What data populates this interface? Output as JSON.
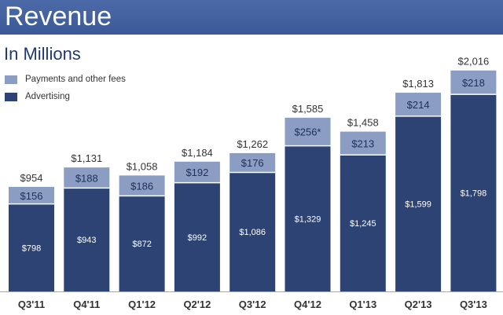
{
  "header": {
    "title": "Revenue"
  },
  "chart_data": {
    "type": "bar",
    "stacked": true,
    "title": "Revenue",
    "subtitle": "In Millions",
    "categories": [
      "Q3'11",
      "Q4'11",
      "Q1'12",
      "Q2'12",
      "Q3'12",
      "Q4'12",
      "Q1'13",
      "Q2'13",
      "Q3'13"
    ],
    "series": [
      {
        "name": "Advertising",
        "values": [
          798,
          943,
          872,
          992,
          1086,
          1329,
          1245,
          1599,
          1798
        ],
        "labels": [
          "$798",
          "$943",
          "$872",
          "$992",
          "$1,086",
          "$1,329",
          "$1,245",
          "$1,599",
          "$1,798"
        ]
      },
      {
        "name": "Payments and other fees",
        "values": [
          156,
          188,
          186,
          192,
          176,
          256,
          213,
          214,
          218
        ],
        "labels": [
          "$156",
          "$188",
          "$186",
          "$192",
          "$176",
          "$256*",
          "$213",
          "$214",
          "$218"
        ]
      }
    ],
    "totals": [
      "$954",
      "$1,131",
      "$1,058",
      "$1,184",
      "$1,262",
      "$1,585",
      "$1,458",
      "$1,813",
      "$2,016"
    ],
    "ylim": [
      0,
      2100
    ],
    "legend_position": "top-left",
    "colors": {
      "Advertising": "#2d4373",
      "Payments and other fees": "#8b9dc3"
    }
  }
}
